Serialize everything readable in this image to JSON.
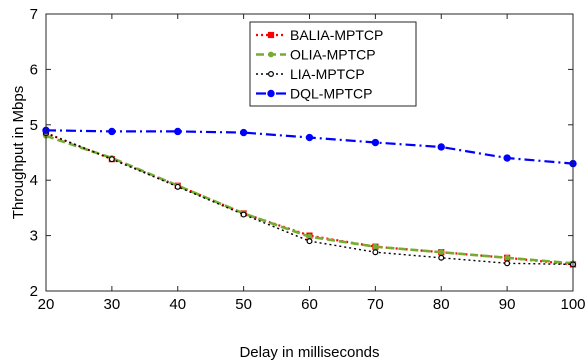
{
  "chart_data": {
    "type": "line",
    "title": "",
    "xlabel": "Delay in milliseconds",
    "ylabel": "Throughput in Mbps",
    "xlim": [
      20,
      100
    ],
    "ylim": [
      2,
      7
    ],
    "x": [
      20,
      30,
      40,
      50,
      60,
      70,
      80,
      90,
      100
    ],
    "xticks": [
      "20",
      "30",
      "40",
      "50",
      "60",
      "70",
      "80",
      "90",
      "100"
    ],
    "yticks": [
      "2",
      "3",
      "4",
      "5",
      "6",
      "7"
    ],
    "grid": false,
    "legend_position": "top-right",
    "series": [
      {
        "name": "BALIA-MPTCP",
        "color": "#ff0000",
        "line_style": "dotted",
        "marker": "square",
        "values": [
          4.85,
          4.38,
          3.9,
          3.4,
          3.0,
          2.8,
          2.7,
          2.6,
          2.48
        ]
      },
      {
        "name": "OLIA-MPTCP",
        "color": "#77ac30",
        "line_style": "dashed",
        "marker": "circle",
        "values": [
          4.8,
          4.4,
          3.9,
          3.4,
          2.98,
          2.8,
          2.7,
          2.6,
          2.5
        ]
      },
      {
        "name": "LIA-MPTCP",
        "color": "#000000",
        "line_style": "dotted",
        "marker": "circle-open",
        "values": [
          4.85,
          4.38,
          3.88,
          3.38,
          2.9,
          2.7,
          2.6,
          2.5,
          2.48
        ]
      },
      {
        "name": "DQL-MPTCP",
        "color": "#0000ff",
        "line_style": "dashdot",
        "marker": "circle",
        "values": [
          4.9,
          4.88,
          4.88,
          4.86,
          4.77,
          4.68,
          4.6,
          4.4,
          4.3
        ]
      }
    ]
  }
}
